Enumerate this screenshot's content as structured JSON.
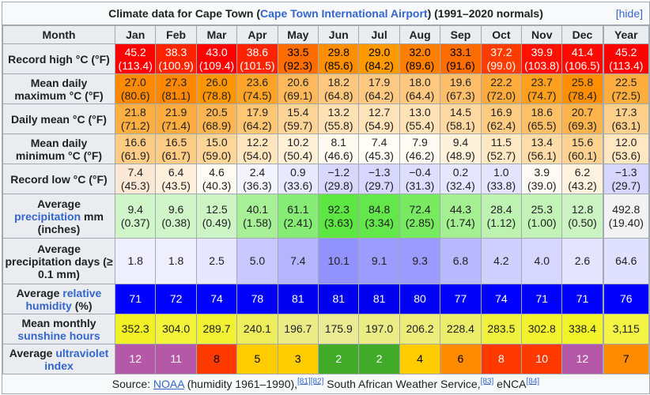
{
  "caption": {
    "prefix": "Climate data for Cape Town (",
    "link": "Cape Town International Airport",
    "suffix": ") (1991–2020 normals)",
    "hide": "[hide]"
  },
  "header": [
    "Month",
    "Jan",
    "Feb",
    "Mar",
    "Apr",
    "May",
    "Jun",
    "Jul",
    "Aug",
    "Sep",
    "Oct",
    "Nov",
    "Dec",
    "Year"
  ],
  "rows": [
    {
      "label": "Record high °C (°F)",
      "cells": [
        [
          "45.2",
          "(113.4)"
        ],
        [
          "38.3",
          "(100.9)"
        ],
        [
          "43.0",
          "(109.4)"
        ],
        [
          "38.6",
          "(101.5)"
        ],
        [
          "33.5",
          "(92.3)"
        ],
        [
          "29.8",
          "(85.6)"
        ],
        [
          "29.0",
          "(84.2)"
        ],
        [
          "32.0",
          "(89.6)"
        ],
        [
          "33.1",
          "(91.6)"
        ],
        [
          "37.2",
          "(99.0)"
        ],
        [
          "39.9",
          "(103.8)"
        ],
        [
          "41.4",
          "(106.5)"
        ],
        [
          "45.2",
          "(113.4)"
        ]
      ]
    },
    {
      "label": "Mean daily maximum °C (°F)",
      "cells": [
        [
          "27.0",
          "(80.6)"
        ],
        [
          "27.3",
          "(81.1)"
        ],
        [
          "26.0",
          "(78.8)"
        ],
        [
          "23.6",
          "(74.5)"
        ],
        [
          "20.6",
          "(69.1)"
        ],
        [
          "18.2",
          "(64.8)"
        ],
        [
          "17.9",
          "(64.2)"
        ],
        [
          "18.0",
          "(64.4)"
        ],
        [
          "19.6",
          "(67.3)"
        ],
        [
          "22.2",
          "(72.0)"
        ],
        [
          "23.7",
          "(74.7)"
        ],
        [
          "25.8",
          "(78.4)"
        ],
        [
          "22.5",
          "(72.5)"
        ]
      ]
    },
    {
      "label": "Daily mean °C (°F)",
      "cells": [
        [
          "21.8",
          "(71.2)"
        ],
        [
          "21.9",
          "(71.4)"
        ],
        [
          "20.5",
          "(68.9)"
        ],
        [
          "17.9",
          "(64.2)"
        ],
        [
          "15.4",
          "(59.7)"
        ],
        [
          "13.2",
          "(55.8)"
        ],
        [
          "12.7",
          "(54.9)"
        ],
        [
          "13.0",
          "(55.4)"
        ],
        [
          "14.5",
          "(58.1)"
        ],
        [
          "16.9",
          "(62.4)"
        ],
        [
          "18.6",
          "(65.5)"
        ],
        [
          "20.7",
          "(69.3)"
        ],
        [
          "17.3",
          "(63.1)"
        ]
      ]
    },
    {
      "label": "Mean daily minimum °C (°F)",
      "cells": [
        [
          "16.6",
          "(61.9)"
        ],
        [
          "16.5",
          "(61.7)"
        ],
        [
          "15.0",
          "(59.0)"
        ],
        [
          "12.2",
          "(54.0)"
        ],
        [
          "10.2",
          "(50.4)"
        ],
        [
          "8.1",
          "(46.6)"
        ],
        [
          "7.4",
          "(45.3)"
        ],
        [
          "7.9",
          "(46.2)"
        ],
        [
          "9.4",
          "(48.9)"
        ],
        [
          "11.5",
          "(52.7)"
        ],
        [
          "13.4",
          "(56.1)"
        ],
        [
          "15.6",
          "(60.1)"
        ],
        [
          "12.0",
          "(53.6)"
        ]
      ]
    },
    {
      "label": "Record low °C (°F)",
      "cells": [
        [
          "7.4",
          "(45.3)"
        ],
        [
          "6.4",
          "(43.5)"
        ],
        [
          "4.6",
          "(40.3)"
        ],
        [
          "2.4",
          "(36.3)"
        ],
        [
          "0.9",
          "(33.6)"
        ],
        [
          "−1.2",
          "(29.8)"
        ],
        [
          "−1.3",
          "(29.7)"
        ],
        [
          "−0.4",
          "(31.3)"
        ],
        [
          "0.2",
          "(32.4)"
        ],
        [
          "1.0",
          "(33.8)"
        ],
        [
          "3.9",
          "(39.0)"
        ],
        [
          "6.2",
          "(43.2)"
        ],
        [
          "−1.3",
          "(29.7)"
        ]
      ]
    },
    {
      "label_parts": [
        "Average ",
        "precipitation",
        " mm (inches)"
      ],
      "cells": [
        [
          "9.4",
          "(0.37)"
        ],
        [
          "9.6",
          "(0.38)"
        ],
        [
          "12.5",
          "(0.49)"
        ],
        [
          "40.1",
          "(1.58)"
        ],
        [
          "61.1",
          "(2.41)"
        ],
        [
          "92.3",
          "(3.63)"
        ],
        [
          "84.8",
          "(3.34)"
        ],
        [
          "72.4",
          "(2.85)"
        ],
        [
          "44.3",
          "(1.74)"
        ],
        [
          "28.4",
          "(1.12)"
        ],
        [
          "25.3",
          "(1.00)"
        ],
        [
          "12.8",
          "(0.50)"
        ],
        [
          "492.8",
          "(19.40)"
        ]
      ]
    },
    {
      "label": "Average precipitation days (≥ 0.1 mm)",
      "cells": [
        [
          "1.8"
        ],
        [
          "1.8"
        ],
        [
          "2.5"
        ],
        [
          "5.0"
        ],
        [
          "7.4"
        ],
        [
          "10.1"
        ],
        [
          "9.1"
        ],
        [
          "9.3"
        ],
        [
          "6.8"
        ],
        [
          "4.2"
        ],
        [
          "4.0"
        ],
        [
          "2.6"
        ],
        [
          "64.6"
        ]
      ]
    },
    {
      "label_parts": [
        "Average ",
        "relative humidity",
        " (%)"
      ],
      "cells": [
        [
          "71"
        ],
        [
          "72"
        ],
        [
          "74"
        ],
        [
          "78"
        ],
        [
          "81"
        ],
        [
          "81"
        ],
        [
          "81"
        ],
        [
          "80"
        ],
        [
          "77"
        ],
        [
          "74"
        ],
        [
          "71"
        ],
        [
          "71"
        ],
        [
          "76"
        ]
      ]
    },
    {
      "label_parts": [
        "Mean monthly ",
        "sunshine hours",
        ""
      ],
      "cells": [
        [
          "352.3"
        ],
        [
          "304.0"
        ],
        [
          "289.7"
        ],
        [
          "240.1"
        ],
        [
          "196.7"
        ],
        [
          "175.9"
        ],
        [
          "197.0"
        ],
        [
          "206.2"
        ],
        [
          "228.4"
        ],
        [
          "283.5"
        ],
        [
          "302.8"
        ],
        [
          "338.4"
        ],
        [
          "3,115"
        ]
      ]
    },
    {
      "label_parts": [
        "Average ",
        "ultraviolet index",
        ""
      ],
      "cells": [
        [
          "12"
        ],
        [
          "11"
        ],
        [
          "8"
        ],
        [
          "5"
        ],
        [
          "3"
        ],
        [
          "2"
        ],
        [
          "2"
        ],
        [
          "4"
        ],
        [
          "6"
        ],
        [
          "8"
        ],
        [
          "10"
        ],
        [
          "12"
        ],
        [
          "7"
        ]
      ]
    }
  ],
  "colors": [
    [
      "#ff0000",
      "#ff2400",
      "#ff0000",
      "#ff2400",
      "#ff6d00",
      "#ff8f00",
      "#ff9900",
      "#ff7f00",
      "#ff6d00",
      "#ff3c00",
      "#ff1000",
      "#ff0a00",
      "#ff0000"
    ],
    [
      "#ff8a00",
      "#ff8800",
      "#ff9600",
      "#ffa426",
      "#ffb85a",
      "#ffc87e",
      "#ffc982",
      "#ffc880",
      "#ffbe6a",
      "#ffac3c",
      "#ff9f1e",
      "#ff8f00",
      "#ffad3e"
    ],
    [
      "#ffae42",
      "#ffad40",
      "#ffb652",
      "#ffc674",
      "#ffd497",
      "#ffe1b4",
      "#ffe4ba",
      "#ffe2b6",
      "#ffd8a2",
      "#ffcb80",
      "#ffc068",
      "#ffb34c",
      "#ffcf8c"
    ],
    [
      "#ffcc86",
      "#ffcc86",
      "#ffd698",
      "#ffe6be",
      "#fff0d6",
      "#fffaf0",
      "#fffdf6",
      "#fffbf2",
      "#fff2da",
      "#ffe8c4",
      "#ffdca8",
      "#ffd292",
      "#ffe7c2"
    ],
    [
      "#fbe8d4",
      "#fff0dc",
      "#fffaf2",
      "#f4f4ff",
      "#e8e8ff",
      "#d8d8ff",
      "#d6d6ff",
      "#dedeff",
      "#e6e6ff",
      "#e4e4ff",
      "#fffaf4",
      "#fff2de",
      "#d6d6ff"
    ],
    [
      "#d0f5c8",
      "#d0f5c8",
      "#cdf4c4",
      "#a8f097",
      "#86ec75",
      "#5ee643",
      "#64e74b",
      "#78ea61",
      "#a4ef92",
      "#bdf2b0",
      "#c3f3b7",
      "#ccf4c2",
      "#f2f2f2"
    ],
    [
      "#eeeeff",
      "#eeeeff",
      "#e6e6ff",
      "#c8c8ff",
      "#b4b4ff",
      "#9292ff",
      "#9c9cff",
      "#9a9aff",
      "#b8b8ff",
      "#d0d0ff",
      "#d6d6ff",
      "#e4e4ff",
      "#e0e0ff"
    ],
    [
      "#0000ff",
      "#0000ff",
      "#0000ff",
      "#0000f8",
      "#0000ef",
      "#0000ef",
      "#0000ef",
      "#0000f2",
      "#0000fa",
      "#0000ff",
      "#0000ff",
      "#0000ff",
      "#0000fc"
    ],
    [
      "#f1f125",
      "#f3f339",
      "#f1f134",
      "#eeee5c",
      "#ecec86",
      "#ebeb94",
      "#ecec86",
      "#eded7c",
      "#eded6c",
      "#f0f03e",
      "#f2f22e",
      "#f3f32a",
      "#f4f444"
    ],
    [
      "#b658a8",
      "#b658a8",
      "#ff3a00",
      "#ffcc00",
      "#ffcc00",
      "#42aa29",
      "#42aa29",
      "#ffcc00",
      "#ff8c00",
      "#ff3a00",
      "#ff3a00",
      "#b658a8",
      "#ff8c00"
    ]
  ],
  "textColors": [
    [
      "#fff",
      "#fff",
      "#fff",
      "#fff",
      "#000",
      "#000",
      "#000",
      "#000",
      "#000",
      "#fff",
      "#fff",
      "#fff",
      "#fff"
    ],
    [],
    [],
    [],
    [],
    [],
    [],
    [
      "#fff",
      "#fff",
      "#fff",
      "#fff",
      "#fff",
      "#fff",
      "#fff",
      "#fff",
      "#fff",
      "#fff",
      "#fff",
      "#fff",
      "#fff"
    ],
    [],
    [
      "#fff",
      "#fff",
      "#000",
      "#000",
      "#000",
      "#fff",
      "#fff",
      "#000",
      "#000",
      "#fff",
      "#fff",
      "#fff",
      "#000"
    ]
  ],
  "footer": {
    "prefix": "Source: ",
    "noaa": "NOAA",
    "mid": " (humidity 1961–1990),",
    "ref1": "[81]",
    "ref2": "[82]",
    "saws": " South African Weather Service,",
    "ref3": "[83]",
    "enca": " eNCA",
    "ref4": "[84]"
  }
}
